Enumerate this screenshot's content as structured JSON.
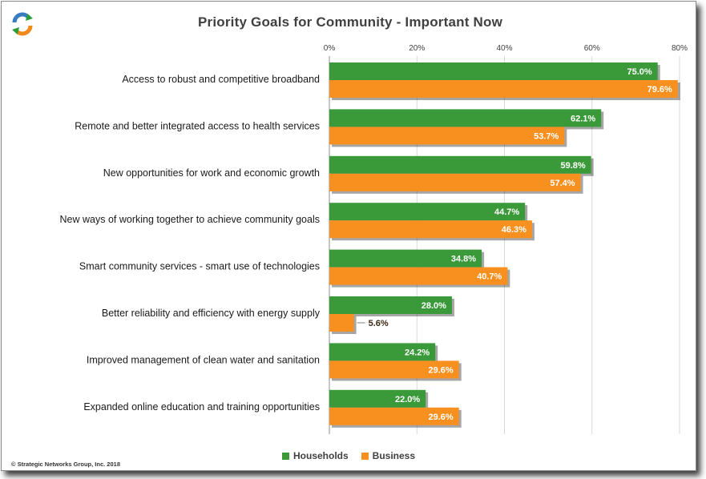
{
  "title": "Priority Goals for Community - Important Now",
  "logo": {
    "icon": "circular-arrows-logo-icon",
    "colors": [
      "#2a9d3a",
      "#f08a1c",
      "#3a7cc2"
    ]
  },
  "copyright": "© Strategic Networks Group, Inc. 2018",
  "legend": [
    {
      "label": "Households",
      "color": "#3a9a3a"
    },
    {
      "label": "Business",
      "color": "#f7901e"
    }
  ],
  "chart_data": {
    "type": "bar",
    "orientation": "horizontal",
    "categories": [
      "Access to robust and competitive broadband",
      "Remote and better integrated access to health services",
      "New opportunities for work and economic growth",
      "New ways of working together to achieve community goals",
      "Smart community services - smart use of technologies",
      "Better reliability and efficiency with energy supply",
      "Improved management of clean water and sanitation",
      "Expanded online education and training opportunities"
    ],
    "series": [
      {
        "name": "Households",
        "color": "#3a9a3a",
        "values": [
          75.0,
          62.1,
          59.8,
          44.7,
          34.8,
          28.0,
          24.2,
          22.0
        ],
        "labels": [
          "75.0%",
          "62.1%",
          "59.8%",
          "44.7%",
          "34.8%",
          "28.0%",
          "24.2%",
          "22.0%"
        ]
      },
      {
        "name": "Business",
        "color": "#f7901e",
        "values": [
          79.6,
          53.7,
          57.4,
          46.3,
          40.7,
          5.6,
          29.6,
          29.6
        ],
        "labels": [
          "79.6%",
          "53.7%",
          "57.4%",
          "46.3%",
          "40.7%",
          "5.6%",
          "29.6%",
          "29.6%"
        ]
      }
    ],
    "x_ticks": [
      "0%",
      "20%",
      "40%",
      "60%",
      "80%"
    ],
    "xlim": [
      0,
      80
    ],
    "axis_position": "top",
    "grid": true,
    "legend_position": "bottom"
  }
}
